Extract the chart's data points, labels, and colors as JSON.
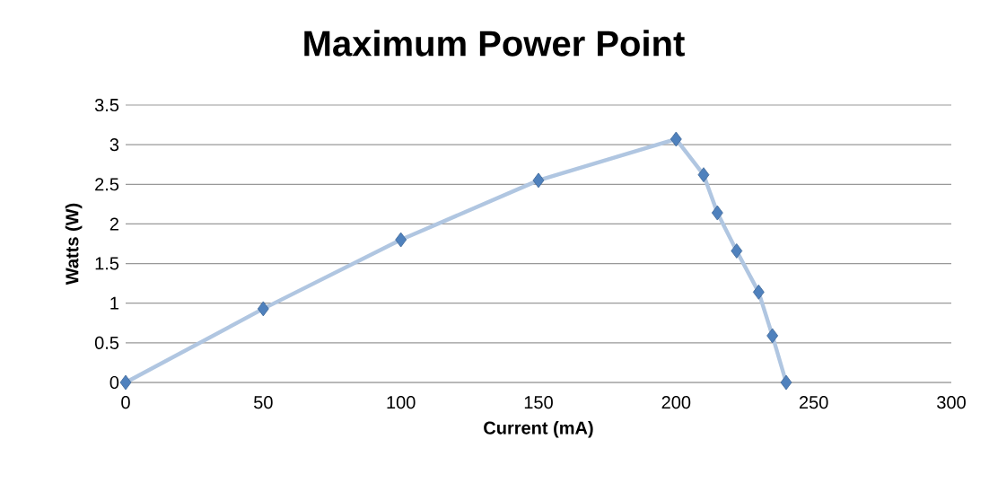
{
  "chart_data": {
    "type": "line",
    "title": "Maximum Power Point",
    "xlabel": "Current (mA)",
    "ylabel": "Watts (W)",
    "x": [
      0,
      50,
      100,
      150,
      200,
      210,
      215,
      222,
      230,
      235,
      240
    ],
    "values": [
      0,
      0.93,
      1.8,
      2.55,
      3.07,
      2.62,
      2.14,
      1.66,
      1.14,
      0.59,
      0
    ],
    "color": "#4f81bd",
    "marker": "diamond",
    "line_style": "solid",
    "grid": "y",
    "xlim": [
      0,
      300
    ],
    "xticks": [
      0,
      50,
      100,
      150,
      200,
      250,
      300
    ],
    "ylim": [
      0,
      3.5
    ],
    "yticks": [
      0,
      0.5,
      1,
      1.5,
      2,
      2.5,
      3,
      3.5
    ]
  }
}
